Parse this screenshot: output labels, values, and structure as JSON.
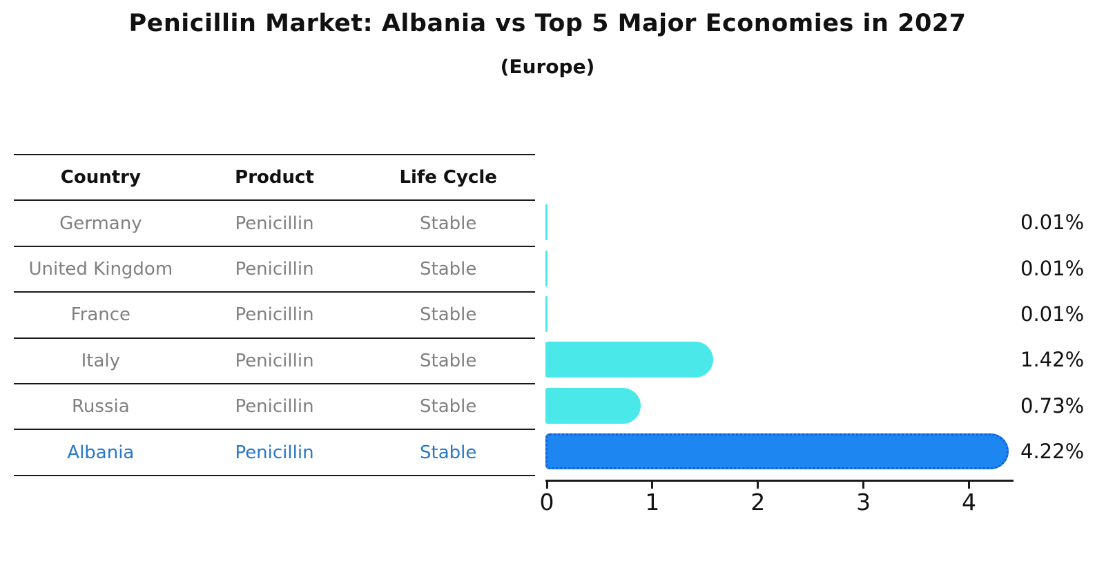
{
  "title": "Penicillin Market: Albania vs Top 5 Major Economies in 2027",
  "subtitle": "(Europe)",
  "table": {
    "headers": [
      "Country",
      "Product",
      "Life Cycle"
    ],
    "rows": [
      {
        "country": "Germany",
        "product": "Penicillin",
        "life_cycle": "Stable",
        "highlighted": false
      },
      {
        "country": "United Kingdom",
        "product": "Penicillin",
        "life_cycle": "Stable",
        "highlighted": false
      },
      {
        "country": "France",
        "product": "Penicillin",
        "life_cycle": "Stable",
        "highlighted": false
      },
      {
        "country": "Italy",
        "product": "Penicillin",
        "life_cycle": "Stable",
        "highlighted": false
      },
      {
        "country": "Russia",
        "product": "Penicillin",
        "life_cycle": "Stable",
        "highlighted": false
      },
      {
        "country": "Albania",
        "product": "Penicillin",
        "life_cycle": "Stable",
        "highlighted": true
      }
    ]
  },
  "chart_data": {
    "type": "bar",
    "orientation": "horizontal",
    "title": "Penicillin Market: Albania vs Top 5 Major Economies in 2027",
    "subtitle": "(Europe)",
    "categories": [
      "Germany",
      "United Kingdom",
      "France",
      "Italy",
      "Russia",
      "Albania"
    ],
    "values": [
      0.01,
      0.01,
      0.01,
      1.42,
      0.73,
      4.22
    ],
    "value_labels": [
      "0.01%",
      "0.01%",
      "0.01%",
      "1.42%",
      "0.73%",
      "4.22%"
    ],
    "x_ticks": [
      "0",
      "1",
      "2",
      "3",
      "4"
    ],
    "xlim": [
      0,
      4.4
    ],
    "xlabel": "",
    "ylabel": "",
    "grid": false,
    "legend": "none",
    "highlight_index": 5
  },
  "colors": {
    "bar_default": "#4AE8E8",
    "bar_highlight": "#1E86F0",
    "bar_highlight_border": "#0F62D8",
    "highlight_text": "#2878C8",
    "muted_text": "#808080",
    "text": "#111111",
    "axis": "#1a1a1a"
  }
}
